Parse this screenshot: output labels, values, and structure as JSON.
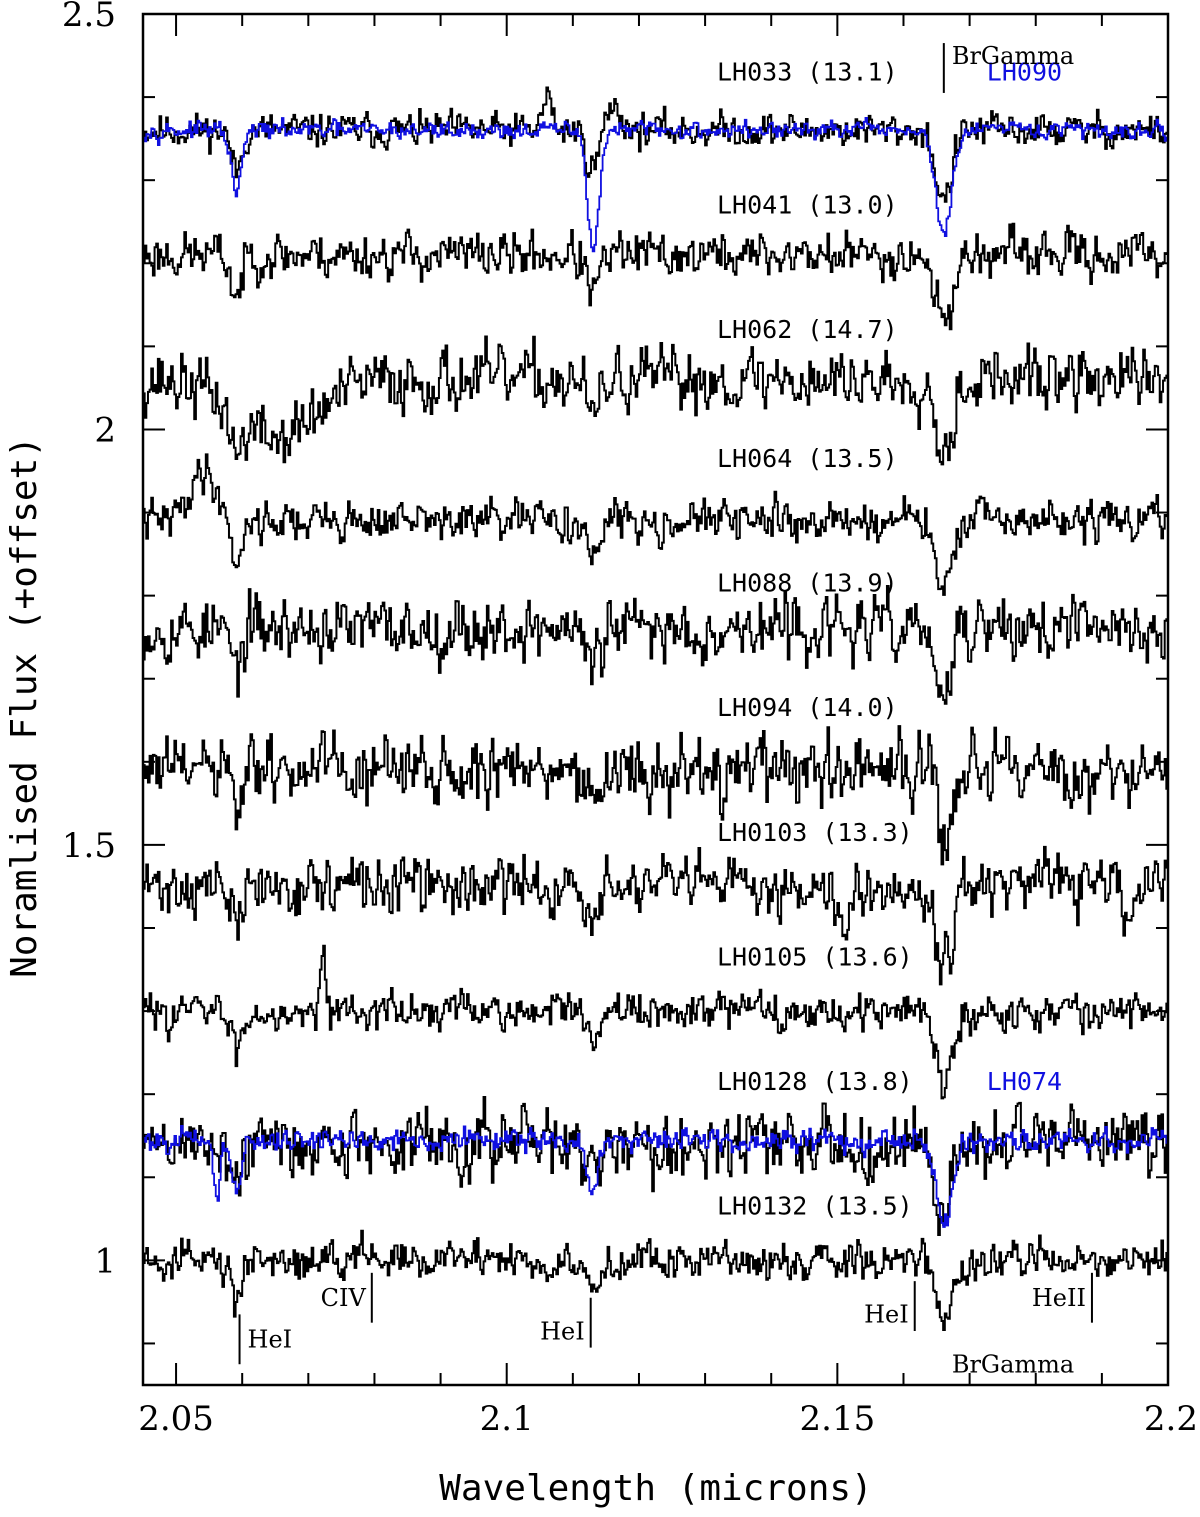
{
  "chart_data": {
    "type": "line",
    "xlabel": "Wavelength (microns)",
    "ylabel": "Noramlised Flux (+offset)",
    "xlim": [
      2.045,
      2.2
    ],
    "ylim": [
      0.85,
      2.5
    ],
    "x_ticks": [
      "2.05",
      "2.1",
      "2.15",
      "2.2"
    ],
    "x_tick_values": [
      2.05,
      2.1,
      2.15,
      2.2
    ],
    "y_ticks": [
      "1",
      "1.5",
      "2",
      "2.5"
    ],
    "y_tick_values": [
      1.0,
      1.5,
      2.0,
      2.5
    ],
    "grid": false,
    "colors": {
      "primary": "#000000",
      "comparison": "#1010e0"
    },
    "line_features": [
      {
        "wavelength": 2.166,
        "depth": 0.085,
        "width": 0.0012
      },
      {
        "wavelength": 2.113,
        "depth": 0.045,
        "width": 0.001
      },
      {
        "wavelength": 2.059,
        "depth": 0.05,
        "width": 0.0008
      }
    ],
    "series": [
      {
        "name": "LH033 (13.1)",
        "baseline": 2.36,
        "noise": 0.012,
        "seed": 11,
        "color": "#000000",
        "extra": [
          {
            "wavelength": 2.106,
            "depth": -0.04,
            "width": 0.0007
          },
          {
            "wavelength": 2.116,
            "depth": -0.03,
            "width": 0.0012
          }
        ]
      },
      {
        "name": "LH090",
        "baseline": 2.36,
        "noise": 0.006,
        "seed": 97,
        "color": "#1010e0",
        "line_scale": 1.5,
        "extra": [
          {
            "wavelength": 2.113,
            "depth": 0.07,
            "width": 0.0008
          }
        ]
      },
      {
        "name": "LH041 (13.0)",
        "baseline": 2.21,
        "noise": 0.016,
        "seed": 23,
        "color": "#000000",
        "extra": []
      },
      {
        "name": "LH062 (14.7)",
        "baseline": 2.06,
        "noise": 0.022,
        "seed": 37,
        "color": "#000000",
        "extra": [
          {
            "wavelength": 2.065,
            "depth": 0.07,
            "width": 0.006
          }
        ]
      },
      {
        "name": "LH064 (13.5)",
        "baseline": 1.89,
        "noise": 0.014,
        "seed": 41,
        "color": "#000000",
        "extra": [
          {
            "wavelength": 2.054,
            "depth": -0.06,
            "width": 0.002
          }
        ]
      },
      {
        "name": "LH088 (13.9)",
        "baseline": 1.76,
        "noise": 0.022,
        "seed": 53,
        "color": "#000000",
        "extra": []
      },
      {
        "name": "LH094 (14.0)",
        "baseline": 1.59,
        "noise": 0.024,
        "seed": 61,
        "color": "#000000",
        "extra": []
      },
      {
        "name": "LH0103 (13.3)",
        "baseline": 1.45,
        "noise": 0.02,
        "seed": 71,
        "color": "#000000",
        "extra": [
          {
            "wavelength": 2.151,
            "depth": 0.07,
            "width": 0.0004
          },
          {
            "wavelength": 2.194,
            "depth": 0.08,
            "width": 0.0004
          }
        ]
      },
      {
        "name": "LH0105 (13.6)",
        "baseline": 1.3,
        "noise": 0.013,
        "seed": 83,
        "color": "#000000",
        "extra": [
          {
            "wavelength": 2.072,
            "depth": -0.09,
            "width": 0.0004
          }
        ]
      },
      {
        "name": "LH0128 (13.8)",
        "baseline": 1.14,
        "noise": 0.024,
        "seed": 89,
        "color": "#000000",
        "extra": []
      },
      {
        "name": "LH074",
        "baseline": 1.145,
        "noise": 0.008,
        "seed": 101,
        "color": "#1010e0",
        "line_scale": 1.2,
        "extra": [
          {
            "wavelength": 2.056,
            "depth": 0.08,
            "width": 0.0004
          }
        ]
      },
      {
        "name": "LH0132 (13.5)",
        "baseline": 1.0,
        "noise": 0.013,
        "seed": 107,
        "color": "#000000",
        "extra": []
      }
    ],
    "spectrum_labels": [
      {
        "text": "LH033 (13.1)",
        "x": 2.1318,
        "y": 2.42,
        "color": "#000000"
      },
      {
        "text": "LH090",
        "x": 2.1726,
        "y": 2.42,
        "color": "#1010e0"
      },
      {
        "text": "LH041 (13.0)",
        "x": 2.1318,
        "y": 2.26,
        "color": "#000000"
      },
      {
        "text": "LH062 (14.7)",
        "x": 2.1318,
        "y": 2.11,
        "color": "#000000"
      },
      {
        "text": "LH064 (13.5)",
        "x": 2.1318,
        "y": 1.955,
        "color": "#000000"
      },
      {
        "text": "LH088 (13.9)",
        "x": 2.1318,
        "y": 1.805,
        "color": "#000000"
      },
      {
        "text": "LH094 (14.0)",
        "x": 2.1318,
        "y": 1.655,
        "color": "#000000"
      },
      {
        "text": "LH0103 (13.3)",
        "x": 2.1318,
        "y": 1.505,
        "color": "#000000"
      },
      {
        "text": "LH0105 (13.6)",
        "x": 2.1318,
        "y": 1.355,
        "color": "#000000"
      },
      {
        "text": "LH0128 (13.8)",
        "x": 2.1318,
        "y": 1.205,
        "color": "#000000"
      },
      {
        "text": "LH074",
        "x": 2.1726,
        "y": 1.205,
        "color": "#1010e0"
      },
      {
        "text": "LH0132 (13.5)",
        "x": 2.1318,
        "y": 1.055,
        "color": "#000000"
      }
    ],
    "line_markers": [
      {
        "text": "BrGamma",
        "wavelength": 2.1661,
        "y0": 2.465,
        "y1": 2.405,
        "text_side": "right",
        "text_y": 2.44
      },
      {
        "text": "HeI",
        "wavelength": 2.0596,
        "y0": 0.935,
        "y1": 0.875,
        "text_side": "right",
        "text_y": 0.895
      },
      {
        "text": "CIV",
        "wavelength": 2.0796,
        "y0": 0.985,
        "y1": 0.925,
        "text_side": "left",
        "text_y": 0.945
      },
      {
        "text": "HeI",
        "wavelength": 2.1127,
        "y0": 0.955,
        "y1": 0.895,
        "text_side": "left",
        "text_y": 0.905
      },
      {
        "text": "HeI",
        "wavelength": 2.1617,
        "y0": 0.975,
        "y1": 0.915,
        "text_side": "left",
        "text_y": 0.925
      },
      {
        "text": "HeII",
        "wavelength": 2.1885,
        "y0": 0.985,
        "y1": 0.925,
        "text_side": "left",
        "text_y": 0.945
      },
      {
        "text": "BrGamma",
        "wavelength": 2.1661,
        "y0": null,
        "y1": null,
        "text_side": "right",
        "text_y": 0.865
      }
    ]
  }
}
